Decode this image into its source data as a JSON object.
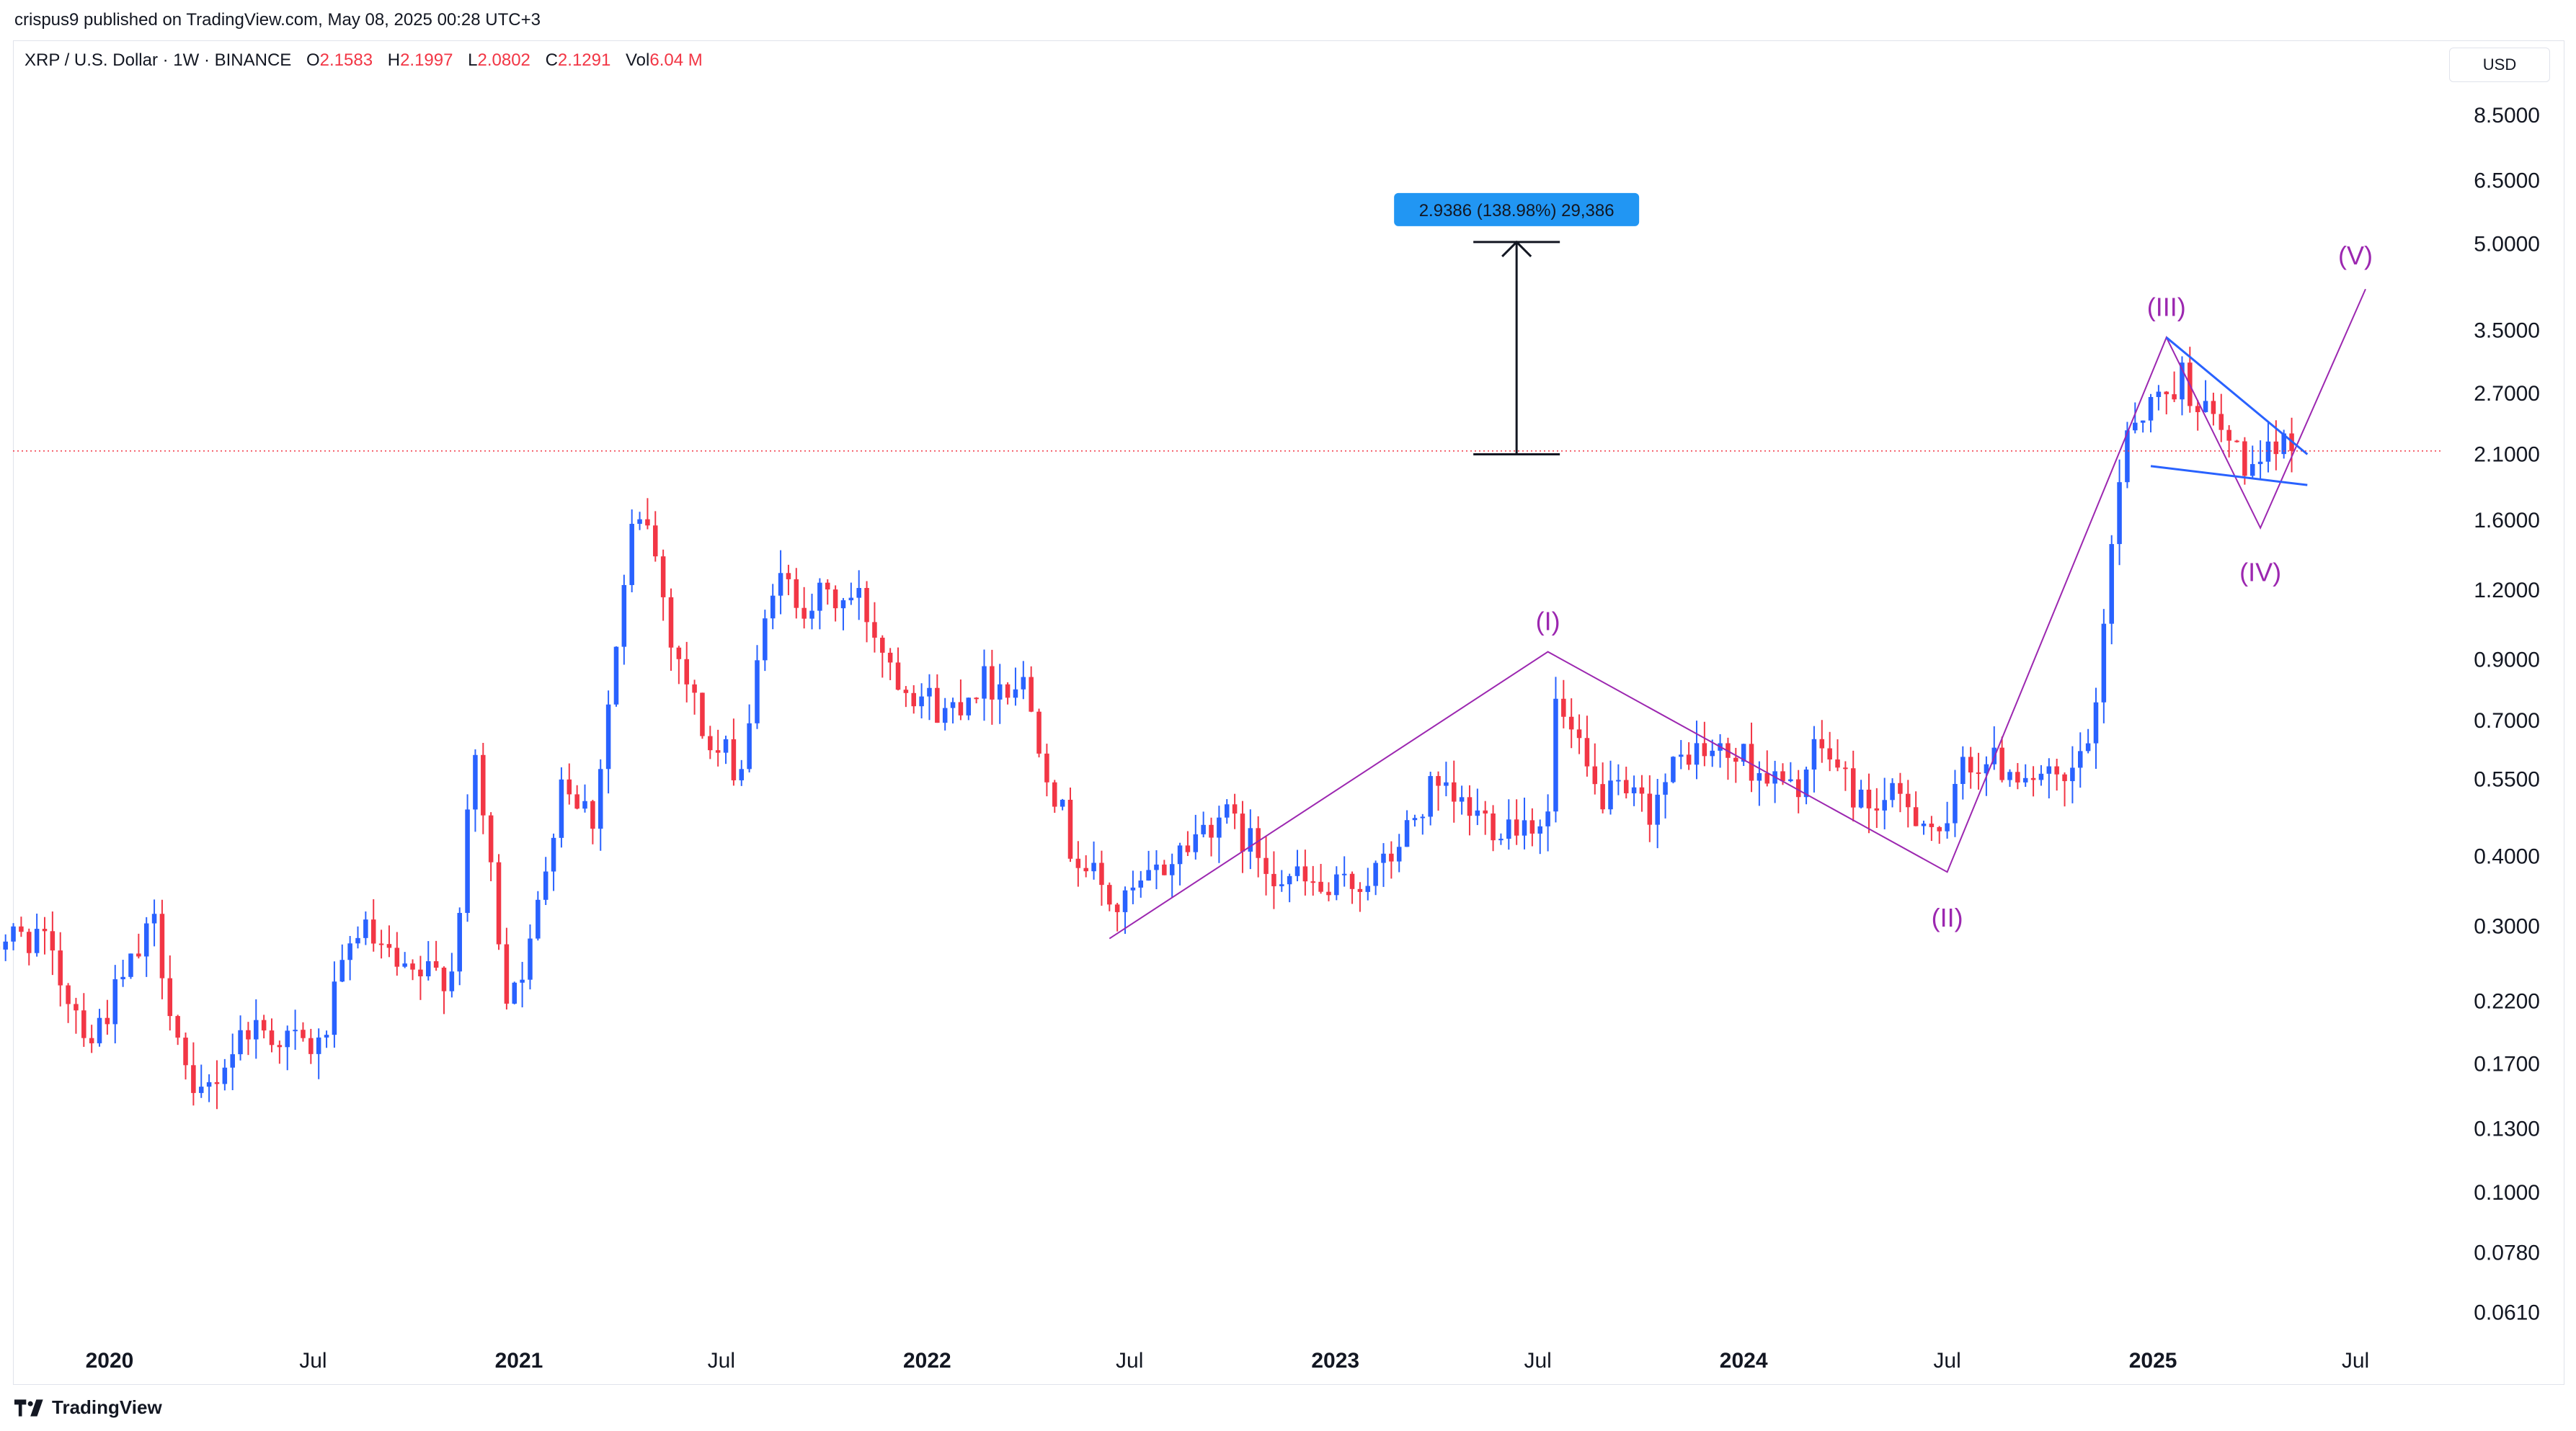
{
  "header": {
    "publisher_line": "crispus9 published on TradingView.com, May 08, 2025 00:28 UTC+3"
  },
  "legend": {
    "symbol": "XRP / U.S. Dollar · 1W · BINANCE",
    "open_label": "O",
    "open": "2.1583",
    "high_label": "H",
    "high": "2.1997",
    "low_label": "L",
    "low": "2.0802",
    "close_label": "C",
    "close": "2.1291",
    "vol_label": "Vol",
    "vol": "6.04 M"
  },
  "currency_button": "USD",
  "branding": {
    "logo": "tradingview-logo-icon",
    "text": "TradingView"
  },
  "colors": {
    "up": "#2962ff",
    "down": "#f23645",
    "wave": "#9c27b0",
    "triangle": "#2962ff",
    "measure_label_bg": "#2196f3"
  },
  "chart_data": {
    "type": "candlestick",
    "scale": "log",
    "timeframe": "1W",
    "last_price": 2.1291,
    "y_ticks": [
      8.5,
      6.5,
      5.0,
      3.5,
      2.7,
      2.1,
      1.6,
      1.2,
      0.9,
      0.7,
      0.55,
      0.4,
      0.3,
      0.22,
      0.17,
      0.13,
      0.1,
      0.078,
      0.061
    ],
    "y_tick_labels": [
      "8.5000",
      "6.5000",
      "5.0000",
      "3.5000",
      "2.7000",
      "2.1000",
      "1.6000",
      "1.2000",
      "0.9000",
      "0.7000",
      "0.5500",
      "0.4000",
      "0.3000",
      "0.2200",
      "0.1700",
      "0.1300",
      "0.1000",
      "0.0780",
      "0.0610"
    ],
    "x_ticks": [
      {
        "date": "2020-01-01",
        "label": "2020",
        "bold": true
      },
      {
        "date": "2020-07-01",
        "label": "Jul",
        "bold": false
      },
      {
        "date": "2021-01-01",
        "label": "2021",
        "bold": true
      },
      {
        "date": "2021-07-01",
        "label": "Jul",
        "bold": false
      },
      {
        "date": "2022-01-01",
        "label": "2022",
        "bold": true
      },
      {
        "date": "2022-07-01",
        "label": "Jul",
        "bold": false
      },
      {
        "date": "2023-01-01",
        "label": "2023",
        "bold": true
      },
      {
        "date": "2023-07-01",
        "label": "Jul",
        "bold": false
      },
      {
        "date": "2024-01-01",
        "label": "2024",
        "bold": true
      },
      {
        "date": "2024-07-01",
        "label": "Jul",
        "bold": false
      },
      {
        "date": "2025-01-01",
        "label": "2025",
        "bold": true
      },
      {
        "date": "2025-07-01",
        "label": "Jul",
        "bold": false
      }
    ],
    "close_path": [
      [
        "2019-09-09",
        0.28
      ],
      [
        "2019-10-28",
        0.29
      ],
      [
        "2019-12-16",
        0.19
      ],
      [
        "2020-02-10",
        0.3
      ],
      [
        "2020-03-16",
        0.14
      ],
      [
        "2020-05-04",
        0.2
      ],
      [
        "2020-07-06",
        0.18
      ],
      [
        "2020-08-10",
        0.3
      ],
      [
        "2020-09-21",
        0.24
      ],
      [
        "2020-11-02",
        0.25
      ],
      [
        "2020-11-23",
        0.6
      ],
      [
        "2020-12-21",
        0.23
      ],
      [
        "2021-01-11",
        0.27
      ],
      [
        "2021-02-08",
        0.56
      ],
      [
        "2021-03-08",
        0.47
      ],
      [
        "2021-04-12",
        1.5
      ],
      [
        "2021-04-26",
        1.6
      ],
      [
        "2021-05-17",
        1.0
      ],
      [
        "2021-06-21",
        0.62
      ],
      [
        "2021-07-19",
        0.58
      ],
      [
        "2021-08-16",
        1.25
      ],
      [
        "2021-09-13",
        1.15
      ],
      [
        "2021-11-01",
        1.15
      ],
      [
        "2021-12-06",
        0.85
      ],
      [
        "2022-01-17",
        0.72
      ],
      [
        "2022-02-14",
        0.82
      ],
      [
        "2022-03-28",
        0.82
      ],
      [
        "2022-05-09",
        0.42
      ],
      [
        "2022-06-20",
        0.32
      ],
      [
        "2022-07-18",
        0.36
      ],
      [
        "2022-09-19",
        0.48
      ],
      [
        "2022-11-07",
        0.38
      ],
      [
        "2022-12-26",
        0.34
      ],
      [
        "2023-02-13",
        0.38
      ],
      [
        "2023-03-27",
        0.52
      ],
      [
        "2023-05-22",
        0.46
      ],
      [
        "2023-07-10",
        0.47
      ],
      [
        "2023-07-17",
        0.75
      ],
      [
        "2023-08-21",
        0.52
      ],
      [
        "2023-10-09",
        0.49
      ],
      [
        "2023-11-13",
        0.62
      ],
      [
        "2024-01-01",
        0.6
      ],
      [
        "2024-02-12",
        0.52
      ],
      [
        "2024-03-11",
        0.63
      ],
      [
        "2024-04-15",
        0.5
      ],
      [
        "2024-05-27",
        0.5
      ],
      [
        "2024-07-01",
        0.43
      ],
      [
        "2024-07-15",
        0.6
      ],
      [
        "2024-09-09",
        0.57
      ],
      [
        "2024-10-14",
        0.52
      ],
      [
        "2024-11-11",
        0.7
      ],
      [
        "2024-11-25",
        1.5
      ],
      [
        "2024-12-09",
        2.4
      ],
      [
        "2025-01-13",
        2.7
      ],
      [
        "2025-01-27",
        2.9
      ],
      [
        "2025-02-17",
        2.5
      ],
      [
        "2025-03-10",
        2.2
      ],
      [
        "2025-04-07",
        1.9
      ],
      [
        "2025-04-21",
        2.2
      ],
      [
        "2025-05-05",
        2.1291
      ]
    ],
    "wave_labels": [
      {
        "label": "(I)",
        "date": "2023-07-10",
        "price": 0.93
      },
      {
        "label": "(II)",
        "date": "2024-07-01",
        "price": 0.36
      },
      {
        "label": "(III)",
        "date": "2025-01-13",
        "price": 3.4
      },
      {
        "label": "(IV)",
        "date": "2025-04-07",
        "price": 1.55
      },
      {
        "label": "(V)",
        "date": "2025-07-01",
        "price": 4.2
      }
    ],
    "measure": {
      "from_price": 2.1,
      "to_price": 5.04,
      "date": "2023-06-12",
      "label": "2.9386 (138.98%) 29,386"
    }
  }
}
